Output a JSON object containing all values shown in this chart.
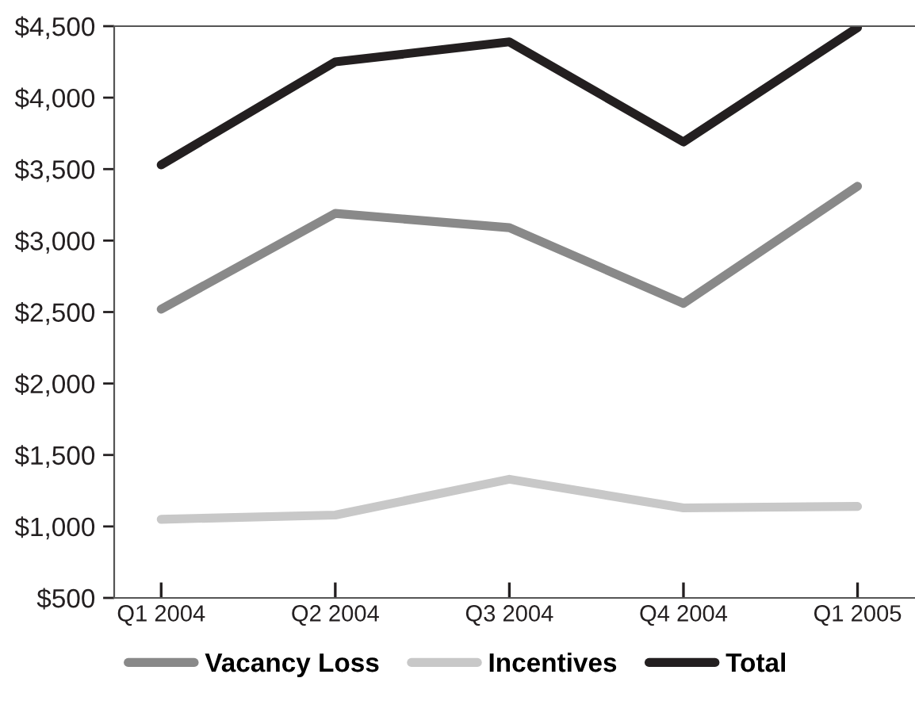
{
  "chart_data": {
    "type": "line",
    "categories": [
      "Q1 2004",
      "Q2 2004",
      "Q3 2004",
      "Q4 2004",
      "Q1 2005"
    ],
    "series": [
      {
        "name": "Vacancy Loss",
        "color": "#898989",
        "values": [
          2520,
          3190,
          3090,
          2560,
          3380
        ]
      },
      {
        "name": "Incentives",
        "color": "#c8c8c8",
        "values": [
          1050,
          1080,
          1330,
          1130,
          1140
        ]
      },
      {
        "name": "Total",
        "color": "#231f20",
        "values": [
          3530,
          4250,
          4390,
          3690,
          4490
        ]
      }
    ],
    "ylim": [
      500,
      4500
    ],
    "yticks": [
      {
        "value": 500,
        "label": "$500"
      },
      {
        "value": 1000,
        "label": "$1,000"
      },
      {
        "value": 1500,
        "label": "$1,500"
      },
      {
        "value": 2000,
        "label": "$2,000"
      },
      {
        "value": 2500,
        "label": "$2,500"
      },
      {
        "value": 3000,
        "label": "$3,000"
      },
      {
        "value": 3500,
        "label": "$3,500"
      },
      {
        "value": 4000,
        "label": "$4,000"
      },
      {
        "value": 4500,
        "label": "$4,500"
      }
    ],
    "grid": false,
    "legend": "bottom",
    "marker": "none",
    "line_style": "solid"
  }
}
